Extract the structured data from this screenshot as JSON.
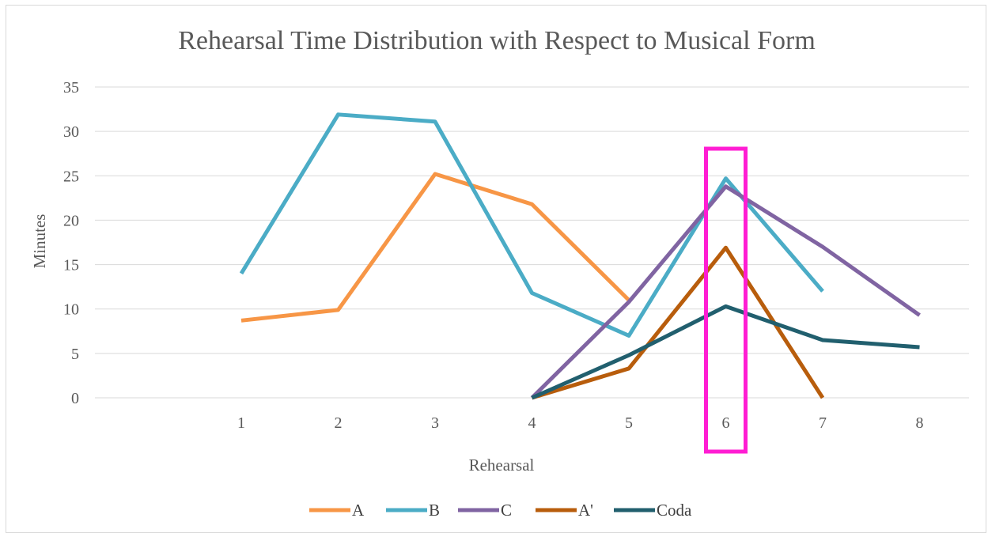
{
  "chart_data": {
    "type": "line",
    "title": "Rehearsal Time Distribution  with Respect to Musical Form",
    "xlabel": "Rehearsal",
    "ylabel": "Minutes",
    "categories": [
      "1",
      "2",
      "3",
      "4",
      "5",
      "6",
      "7",
      "8"
    ],
    "ylim": [
      0,
      35
    ],
    "yticks": [
      "0",
      "5",
      "10",
      "15",
      "20",
      "25",
      "30",
      "35"
    ],
    "grid": true,
    "legend_position": "bottom",
    "series": [
      {
        "name": "A",
        "color": "#F79646",
        "values": [
          8.7,
          9.9,
          25.2,
          21.8,
          11,
          null,
          null,
          null
        ]
      },
      {
        "name": "B",
        "color": "#4BACC6",
        "values": [
          14,
          31.9,
          31.1,
          11.8,
          7,
          24.7,
          12,
          null
        ]
      },
      {
        "name": "C",
        "color": "#8064A2",
        "values": [
          null,
          null,
          null,
          0,
          10.8,
          23.8,
          17,
          9.3
        ]
      },
      {
        "name": "A'",
        "color": "#B85D0C",
        "values": [
          null,
          null,
          null,
          0,
          3.3,
          16.9,
          0,
          null
        ]
      },
      {
        "name": "Coda",
        "color": "#215F6E",
        "values": [
          null,
          null,
          null,
          0,
          4.8,
          10.3,
          6.5,
          5.7
        ]
      }
    ],
    "highlight": {
      "category": "6",
      "color": "#FF1DD3"
    }
  }
}
